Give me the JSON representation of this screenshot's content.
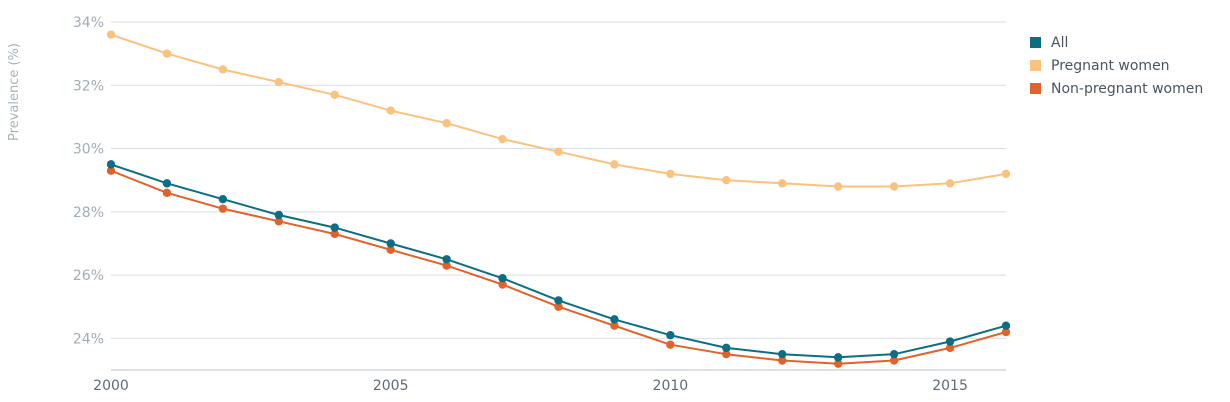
{
  "chart_data": {
    "type": "line",
    "title": "",
    "xlabel": "",
    "ylabel": "Prevalence (%)",
    "x": [
      2000,
      2001,
      2002,
      2003,
      2004,
      2005,
      2006,
      2007,
      2008,
      2009,
      2010,
      2011,
      2012,
      2013,
      2014,
      2015,
      2016
    ],
    "xlim": [
      2000,
      2016
    ],
    "ylim": [
      23,
      34
    ],
    "x_ticks": [
      2000,
      2005,
      2010,
      2015
    ],
    "x_tick_labels": [
      "2000",
      "2005",
      "2010",
      "2015"
    ],
    "y_ticks": [
      24,
      26,
      28,
      30,
      32,
      34
    ],
    "y_tick_labels": [
      "24%",
      "26%",
      "28%",
      "30%",
      "32%",
      "34%"
    ],
    "grid": true,
    "legend_position": "top-right",
    "series": [
      {
        "name": "All",
        "color": "#0b6e83",
        "values": [
          29.5,
          28.9,
          28.4,
          27.9,
          27.5,
          27.0,
          26.5,
          25.9,
          25.2,
          24.6,
          24.1,
          23.7,
          23.5,
          23.4,
          23.5,
          23.9,
          24.4
        ]
      },
      {
        "name": "Pregnant women",
        "color": "#f9c27f",
        "values": [
          33.6,
          33.0,
          32.5,
          32.1,
          31.7,
          31.2,
          30.8,
          30.3,
          29.9,
          29.5,
          29.2,
          29.0,
          28.9,
          28.8,
          28.8,
          28.9,
          29.2
        ]
      },
      {
        "name": "Non-pregnant women",
        "color": "#e2622a",
        "values": [
          29.3,
          28.6,
          28.1,
          27.7,
          27.3,
          26.8,
          26.3,
          25.7,
          25.0,
          24.4,
          23.8,
          23.5,
          23.3,
          23.2,
          23.3,
          23.7,
          24.2
        ]
      }
    ]
  }
}
